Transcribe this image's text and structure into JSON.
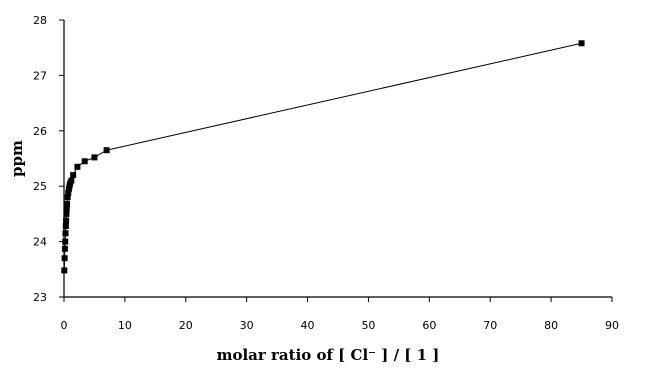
{
  "chart_data": {
    "type": "line",
    "title": "",
    "xlabel": "molar ratio of [ Cl⁻ ] / [ 1 ]",
    "ylabel": "ppm",
    "xlim": [
      0,
      90
    ],
    "ylim": [
      23,
      28
    ],
    "x_ticks": [
      0,
      10,
      20,
      30,
      40,
      50,
      60,
      70,
      80,
      90
    ],
    "y_ticks": [
      23,
      24,
      25,
      26,
      27,
      28
    ],
    "grid": false,
    "legend": "none",
    "marker": "square",
    "line_color": "#000000",
    "series": [
      {
        "x": [
          0.05,
          0.1,
          0.15,
          0.2,
          0.25,
          0.3,
          0.35,
          0.4,
          0.45,
          0.5,
          0.6,
          0.7,
          0.8,
          0.9,
          1.0,
          1.2,
          1.5,
          2.2,
          3.4,
          5.0,
          7.0,
          85.0
        ],
        "values": [
          23.48,
          23.7,
          23.87,
          24.0,
          24.15,
          24.28,
          24.38,
          24.5,
          24.6,
          24.68,
          24.8,
          24.88,
          24.95,
          25.0,
          25.05,
          25.1,
          25.2,
          25.35,
          25.45,
          25.52,
          25.65,
          27.58
        ]
      }
    ]
  }
}
